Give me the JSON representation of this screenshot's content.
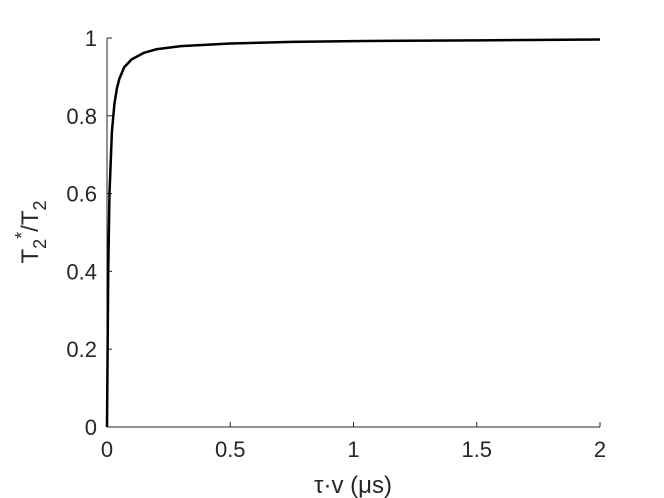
{
  "chart_data": {
    "type": "line",
    "xlabel": "τ·v (μs)",
    "ylabel": [
      "T",
      "2",
      "*",
      "/T",
      "2"
    ],
    "x": [
      0,
      0.005,
      0.01,
      0.02,
      0.03,
      0.04,
      0.05,
      0.07,
      0.1,
      0.15,
      0.2,
      0.3,
      0.5,
      0.75,
      1,
      1.5,
      2
    ],
    "series": [
      {
        "color": "#000000",
        "values": [
          0,
          0.4,
          0.6,
          0.76,
          0.83,
          0.87,
          0.895,
          0.925,
          0.945,
          0.962,
          0.971,
          0.979,
          0.986,
          0.99,
          0.992,
          0.994,
          0.996
        ]
      }
    ],
    "xlim": [
      0,
      2
    ],
    "ylim": [
      0,
      1
    ],
    "xticks": [
      0,
      0.5,
      1,
      1.5,
      2
    ],
    "yticks": [
      0,
      0.2,
      0.4,
      0.6,
      0.8,
      1
    ]
  }
}
